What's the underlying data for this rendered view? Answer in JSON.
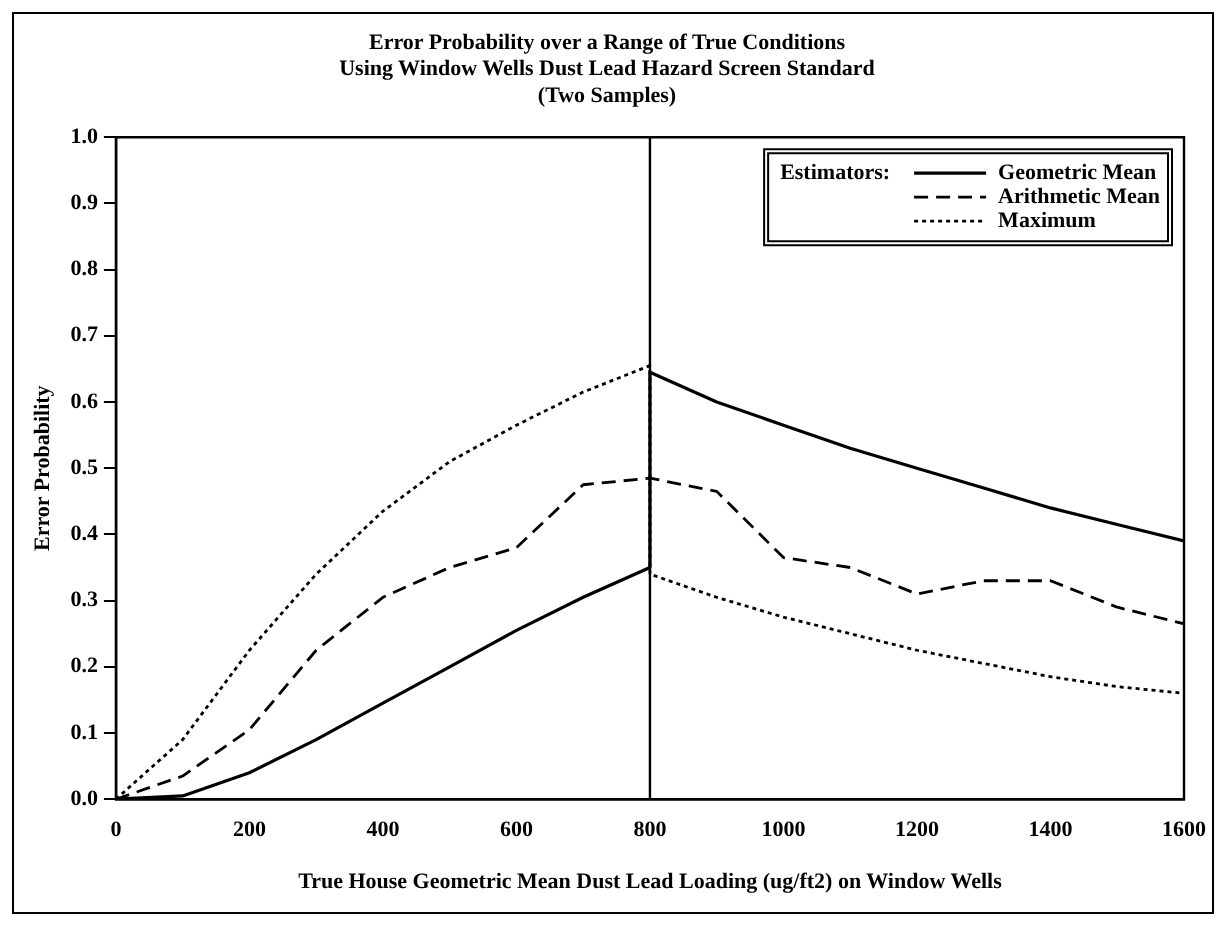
{
  "chart_data": {
    "type": "line",
    "title": "Error Probability over a Range of True Conditions",
    "subtitle": "Using Window Wells Dust Lead Hazard Screen Standard\n(Two Samples)",
    "xlabel": "True House Geometric Mean Dust Lead Loading (ug/ft2) on Window Wells",
    "ylabel": "Error Probability",
    "legend_title": "Estimators:",
    "legend": "top right",
    "grid": false,
    "marker": "none",
    "series": [
      {
        "name": "Geometric Mean",
        "color": "#000000",
        "line_style": "solid",
        "x": [
          0,
          100,
          200,
          300,
          400,
          500,
          600,
          700,
          800,
          800,
          900,
          1000,
          1100,
          1200,
          1300,
          1400,
          1500,
          1600
        ],
        "values": [
          0,
          0.005,
          0.04,
          0.09,
          0.145,
          0.2,
          0.255,
          0.305,
          0.35,
          0.645,
          0.6,
          0.565,
          0.53,
          0.5,
          0.47,
          0.44,
          0.415,
          0.39
        ]
      },
      {
        "name": "Arithmetic Mean",
        "color": "#000000",
        "line_style": "dashed",
        "x": [
          0,
          100,
          200,
          300,
          400,
          500,
          600,
          700,
          800,
          900,
          1000,
          1100,
          1200,
          1300,
          1400,
          1500,
          1600
        ],
        "values": [
          0,
          0.035,
          0.105,
          0.225,
          0.305,
          0.35,
          0.38,
          0.475,
          0.485,
          0.465,
          0.365,
          0.35,
          0.31,
          0.33,
          0.33,
          0.29,
          0.265
        ]
      },
      {
        "name": "Maximum",
        "color": "#000000",
        "line_style": "dotted",
        "x": [
          0,
          100,
          200,
          300,
          400,
          500,
          600,
          700,
          800,
          800,
          900,
          1000,
          1100,
          1200,
          1300,
          1400,
          1500,
          1600
        ],
        "values": [
          0,
          0.09,
          0.225,
          0.34,
          0.435,
          0.51,
          0.565,
          0.615,
          0.655,
          0.34,
          0.305,
          0.275,
          0.25,
          0.225,
          0.205,
          0.185,
          0.17,
          0.16
        ]
      }
    ],
    "xlim": [
      0,
      1600
    ],
    "xticks": [
      0,
      200,
      400,
      600,
      800,
      1000,
      1200,
      1400,
      1600
    ],
    "ylim": [
      0,
      1
    ],
    "yticks": [
      {
        "value": 0,
        "label": "0.0"
      },
      {
        "value": 0.1,
        "label": "0.1"
      },
      {
        "value": 0.2,
        "label": "0.2"
      },
      {
        "value": 0.3,
        "label": "0.3"
      },
      {
        "value": 0.4,
        "label": "0.4"
      },
      {
        "value": 0.5,
        "label": "0.5"
      },
      {
        "value": 0.6,
        "label": "0.6"
      },
      {
        "value": 0.7,
        "label": "0.7"
      },
      {
        "value": 0.8,
        "label": "0.8"
      },
      {
        "value": 0.9,
        "label": "0.9"
      },
      {
        "value": 1,
        "label": "1.0"
      }
    ],
    "ref_lines": [
      {
        "axis": "x",
        "value": 800,
        "color": "#000000"
      }
    ]
  }
}
